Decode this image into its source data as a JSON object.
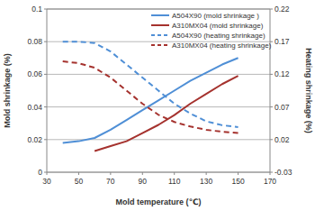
{
  "chart_data": {
    "type": "line",
    "xlabel": "Mold temperature (℃)",
    "ylabel": "Mold shrinkage (%)",
    "y2label": "Heating shrinkage (%)",
    "x": [
      40,
      50,
      60,
      70,
      80,
      90,
      100,
      110,
      120,
      130,
      140,
      150
    ],
    "series": [
      {
        "name": "A504X90 (mold shrinkage )",
        "color": "#4f8fd6",
        "line_style": "solid",
        "values": [
          0.018,
          0.019,
          0.021,
          0.026,
          0.032,
          0.038,
          0.044,
          0.05,
          0.056,
          0.061,
          0.066,
          0.07
        ]
      },
      {
        "name": "A310MX04 (mold shrinkage)",
        "color": "#a5322e",
        "line_style": "solid",
        "values": [
          null,
          null,
          0.013,
          0.016,
          0.019,
          0.024,
          0.029,
          0.035,
          0.042,
          0.048,
          0.054,
          0.059
        ]
      },
      {
        "name": "A504X90 (heating shrinkage)",
        "color": "#4f8fd6",
        "line_style": "dashed",
        "axis": "y2",
        "values": [
          0.17,
          0.17,
          0.168,
          0.155,
          0.135,
          0.115,
          0.095,
          0.075,
          0.06,
          0.048,
          0.042,
          0.039
        ]
      },
      {
        "name": "A310MX04 (heating shrinkage)",
        "color": "#a5322e",
        "line_style": "dashed",
        "axis": "y2",
        "values": [
          0.14,
          0.137,
          0.13,
          0.115,
          0.095,
          0.075,
          0.058,
          0.047,
          0.04,
          0.035,
          0.032,
          0.03
        ]
      }
    ],
    "xlim": [
      30,
      170
    ],
    "xticks": [
      30,
      50,
      70,
      90,
      110,
      130,
      150,
      170
    ],
    "ylim": [
      0,
      0.1
    ],
    "yticks": [
      0,
      0.02,
      0.04,
      0.06,
      0.08,
      0.1
    ],
    "y2lim": [
      -0.03,
      0.22
    ],
    "y2ticks": [
      -0.03,
      0.02,
      0.07,
      0.12,
      0.17,
      0.22
    ],
    "grid": true,
    "legend": "top-right"
  }
}
